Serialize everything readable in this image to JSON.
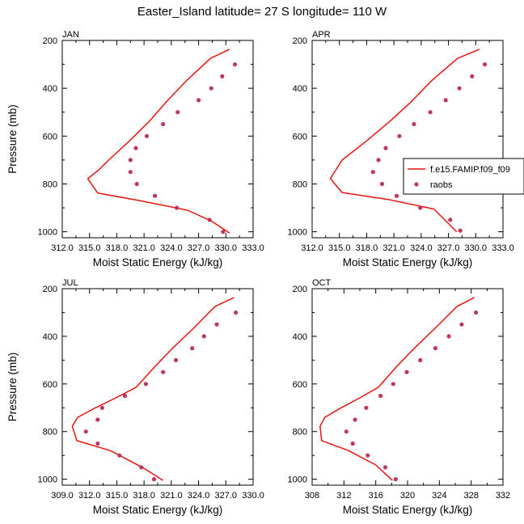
{
  "figure": {
    "title": "Easter_Island  latitude= 27 S longitude= 110 W"
  },
  "colors": {
    "model": "#e8140e",
    "obs": "#c0365c"
  },
  "chart_data": [
    {
      "type": "line",
      "label": "JAN",
      "xlabel": "Moist Static Energy (kJ/kg)",
      "ylabel": "Pressure (mb)",
      "xlim": [
        312,
        333
      ],
      "ylim": [
        1025,
        200
      ],
      "xticks": [
        312,
        315,
        318,
        321,
        324,
        327,
        330,
        333
      ],
      "xtick_labels": [
        "312.0",
        "315.0",
        "318.0",
        "321.0",
        "324.0",
        "327.0",
        "330.0",
        "333.0"
      ],
      "yticks": [
        200,
        400,
        600,
        800,
        1000
      ],
      "ytick_labels": [
        "200",
        "400",
        "600",
        "800",
        "1000"
      ],
      "series": [
        {
          "name": "f.e15.FAMIP.f09_f09",
          "style": "line",
          "x": [
            330.4,
            328.3,
            325.7,
            323.5,
            321.6,
            319.4,
            317.2,
            316.0,
            314.8,
            315.9,
            320.6,
            325.8,
            328.4,
            330.4
          ],
          "y": [
            237,
            275,
            367,
            455,
            537,
            620,
            697,
            742,
            778,
            838,
            870,
            910,
            955,
            1005
          ]
        },
        {
          "name": "raobs",
          "style": "markers",
          "x": [
            331.0,
            329.6,
            328.4,
            327.0,
            324.7,
            323.1,
            321.3,
            320.1,
            319.5,
            319.5,
            320.2,
            322.2,
            324.6,
            328.2,
            329.7
          ],
          "y": [
            300,
            350,
            400,
            450,
            500,
            550,
            600,
            650,
            700,
            750,
            800,
            850,
            900,
            950,
            1000
          ]
        }
      ]
    },
    {
      "type": "line",
      "label": "APR",
      "xlabel": "Moist Static Energy (kJ/kg)",
      "xlim": [
        312,
        333
      ],
      "ylim": [
        1025,
        200
      ],
      "xticks": [
        312,
        315,
        318,
        321,
        324,
        327,
        330,
        333
      ],
      "xtick_labels": [
        "312.0",
        "315.0",
        "318.0",
        "321.0",
        "324.0",
        "327.0",
        "330.0",
        "333.0"
      ],
      "yticks": [
        200,
        400,
        600,
        800,
        1000
      ],
      "ytick_labels": [
        "200",
        "400",
        "600",
        "800",
        "1000"
      ],
      "legend": {
        "position": "right-middle",
        "entries": [
          "f.e15.FAMIP.f09_f09",
          "raobs"
        ]
      },
      "series": [
        {
          "name": "f.e15.FAMIP.f09_f09",
          "style": "line",
          "x": [
            330.4,
            328.0,
            325.1,
            322.8,
            320.5,
            318.0,
            315.3,
            314.0,
            315.3,
            320.4,
            325.4,
            327.9
          ],
          "y": [
            237,
            275,
            370,
            460,
            540,
            620,
            700,
            778,
            836,
            865,
            905,
            1000
          ]
        },
        {
          "name": "raobs",
          "style": "markers",
          "x": [
            331.0,
            329.6,
            328.2,
            326.7,
            325.0,
            323.2,
            321.6,
            320.1,
            319.3,
            318.7,
            319.7,
            321.3,
            323.9,
            327.2,
            328.3
          ],
          "y": [
            300,
            350,
            400,
            450,
            500,
            550,
            600,
            650,
            700,
            750,
            800,
            850,
            900,
            950,
            995
          ]
        }
      ]
    },
    {
      "type": "line",
      "label": "JUL",
      "xlabel": "Moist Static Energy (kJ/kg)",
      "ylabel": "Pressure (mb)",
      "xlim": [
        309,
        330
      ],
      "ylim": [
        1025,
        200
      ],
      "xticks": [
        309,
        312,
        315,
        318,
        321,
        324,
        327,
        330
      ],
      "xtick_labels": [
        "309.0",
        "312.0",
        "315.0",
        "318.0",
        "321.0",
        "324.0",
        "327.0",
        "330.0"
      ],
      "yticks": [
        200,
        400,
        600,
        800,
        1000
      ],
      "ytick_labels": [
        "200",
        "400",
        "600",
        "800",
        "1000"
      ],
      "series": [
        {
          "name": "f.e15.FAMIP.f09_f09",
          "style": "line",
          "x": [
            327.9,
            325.8,
            323.4,
            321.0,
            319.0,
            317.1,
            314.8,
            312.4,
            310.7,
            310.1,
            310.6,
            314.3,
            317.8,
            320.1
          ],
          "y": [
            237,
            275,
            368,
            455,
            535,
            615,
            660,
            705,
            740,
            778,
            838,
            880,
            950,
            1005
          ]
        },
        {
          "name": "raobs",
          "style": "markers",
          "x": [
            328.1,
            326.0,
            324.6,
            323.3,
            321.5,
            320.1,
            318.2,
            315.9,
            313.4,
            312.9,
            311.6,
            312.9,
            315.3,
            317.7,
            319.1
          ],
          "y": [
            300,
            350,
            400,
            450,
            500,
            550,
            600,
            650,
            700,
            750,
            800,
            850,
            900,
            950,
            1000
          ]
        }
      ]
    },
    {
      "type": "line",
      "label": "OCT",
      "xlabel": "Moist Static Energy (kJ/kg)",
      "xlim": [
        308,
        332
      ],
      "ylim": [
        1025,
        200
      ],
      "xticks": [
        308,
        312,
        316,
        320,
        324,
        328,
        332
      ],
      "xtick_labels": [
        "308",
        "312",
        "316",
        "320",
        "324",
        "328",
        "332"
      ],
      "yticks": [
        200,
        400,
        600,
        800,
        1000
      ],
      "ytick_labels": [
        "200",
        "400",
        "600",
        "800",
        "1000"
      ],
      "series": [
        {
          "name": "f.e15.FAMIP.f09_f09",
          "style": "line",
          "x": [
            328.4,
            326.2,
            323.5,
            320.7,
            318.4,
            316.3,
            313.9,
            311.4,
            309.6,
            309.0,
            309.2,
            312.6,
            316.0,
            318.1
          ],
          "y": [
            237,
            275,
            365,
            455,
            535,
            615,
            660,
            705,
            740,
            778,
            838,
            880,
            940,
            1005
          ]
        },
        {
          "name": "raobs",
          "style": "markers",
          "x": [
            328.6,
            326.8,
            325.2,
            323.5,
            321.6,
            319.9,
            318.2,
            316.6,
            314.8,
            313.4,
            312.3,
            313.1,
            315.0,
            317.2,
            318.5
          ],
          "y": [
            300,
            350,
            400,
            450,
            500,
            550,
            600,
            650,
            700,
            750,
            800,
            850,
            900,
            950,
            1000
          ]
        }
      ]
    }
  ]
}
